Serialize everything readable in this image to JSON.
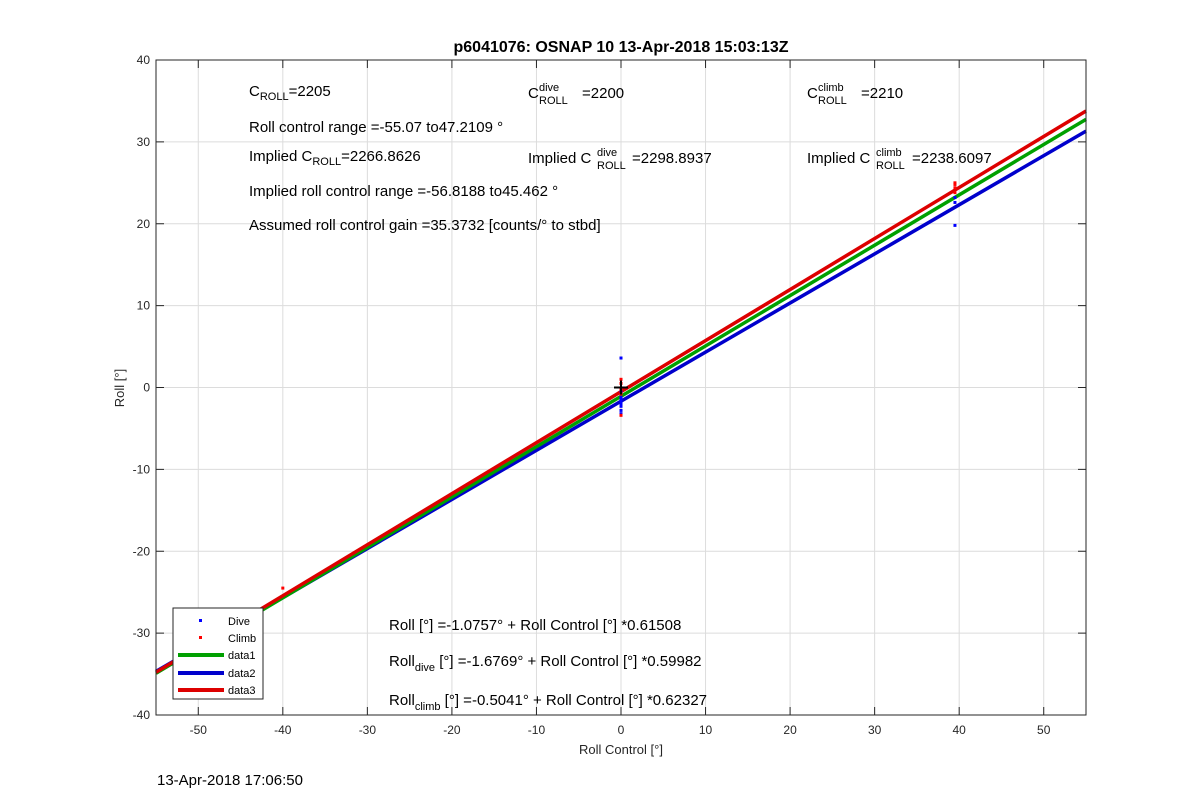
{
  "chart_data": {
    "type": "scatter",
    "title": "p6041076: OSNAP 10 13-Apr-2018 15:03:13Z",
    "xlabel": "Roll Control [°]",
    "ylabel": "Roll [°]",
    "xlim": [
      -55,
      55
    ],
    "ylim": [
      -40,
      40
    ],
    "x_ticks": [
      -50,
      -40,
      -30,
      -20,
      -10,
      0,
      10,
      20,
      30,
      40,
      50
    ],
    "y_ticks": [
      -40,
      -30,
      -20,
      -10,
      0,
      10,
      20,
      30,
      40
    ],
    "grid": true,
    "legend_position": "bottom-left",
    "colors": {
      "dive": "#0000ff",
      "climb": "#ff0000",
      "data1": "#00a000",
      "data2": "#0000cc",
      "data3": "#dd0000",
      "marker": "#000000"
    },
    "series": [
      {
        "name": "Dive",
        "kind": "points",
        "points": [
          [
            0,
            3.6
          ],
          [
            0,
            -0.5
          ],
          [
            0,
            -1.2
          ],
          [
            0,
            -1.8
          ],
          [
            0,
            -2.3
          ],
          [
            0,
            -2.8
          ],
          [
            0,
            -3.2
          ],
          [
            0,
            -1.5
          ],
          [
            0,
            -2.0
          ],
          [
            39.5,
            19.8
          ],
          [
            39.5,
            23.2
          ],
          [
            39.5,
            22.6
          ]
        ]
      },
      {
        "name": "Climb",
        "kind": "points",
        "points": [
          [
            -40,
            -24.5
          ],
          [
            0,
            1.0
          ],
          [
            0,
            0.5
          ],
          [
            0,
            -0.2
          ],
          [
            0,
            -0.8
          ],
          [
            0,
            -3.4
          ],
          [
            39.5,
            25.0
          ],
          [
            39.5,
            24.4
          ],
          [
            39.5,
            23.8
          ],
          [
            39.5,
            24.8
          ]
        ]
      },
      {
        "name": "data1",
        "kind": "line",
        "intercept": -1.0757,
        "slope": 0.61508
      },
      {
        "name": "data2",
        "kind": "line",
        "intercept": -1.6769,
        "slope": 0.59982
      },
      {
        "name": "data3",
        "kind": "line",
        "intercept": -0.5041,
        "slope": 0.62327
      }
    ],
    "crosshair": [
      0,
      0
    ]
  },
  "annotations": {
    "c_roll_main": "C",
    "c_roll_sub": "ROLL",
    "c_roll_value": "=2205",
    "c_dive_main": "C",
    "c_dive_sup": "dive",
    "c_dive_sub": "ROLL",
    "c_dive_value": "=2200",
    "c_climb_main": "C",
    "c_climb_sup": "climb",
    "c_climb_sub": "ROLL",
    "c_climb_value": "=2210",
    "roll_range": "Roll control range =-55.07 to47.2109 °",
    "implied_roll_prefix": "Implied C",
    "implied_roll_sub": "ROLL",
    "implied_roll_value": "=2266.8626",
    "implied_dive_prefix": "Implied C",
    "implied_dive_sup": "dive",
    "implied_dive_sub": "ROLL",
    "implied_dive_value": "=2298.8937",
    "implied_climb_prefix": "Implied C",
    "implied_climb_sup": "climb",
    "implied_climb_sub": "ROLL",
    "implied_climb_value": "=2238.6097",
    "implied_range": "Implied roll control range =-56.8188 to45.462 °",
    "gain": "Assumed roll control gain =35.3732 [counts/° to stbd]",
    "fit_all": "Roll [°] =-1.0757° + Roll Control [°] *0.61508",
    "fit_dive_main": "Roll",
    "fit_dive_sub": "dive",
    "fit_dive_rest": " [°] =-1.6769° + Roll Control [°] *0.59982",
    "fit_climb_main": "Roll",
    "fit_climb_sub": "climb",
    "fit_climb_rest": " [°] =-0.5041° + Roll Control [°] *0.62327"
  },
  "timestamp": "13-Apr-2018 17:06:50"
}
